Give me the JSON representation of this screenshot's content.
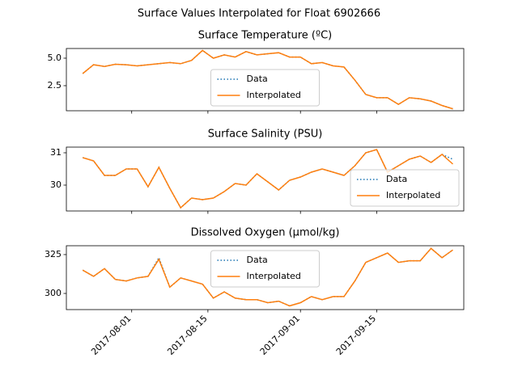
{
  "title": "Surface Values Interpolated for Float 6902666",
  "chart_data": [
    {
      "type": "line",
      "title": "Surface Temperature (ºC)",
      "x": [
        "2017-07-23",
        "2017-07-25",
        "2017-07-27",
        "2017-07-29",
        "2017-07-31",
        "2017-08-02",
        "2017-08-04",
        "2017-08-06",
        "2017-08-08",
        "2017-08-10",
        "2017-08-12",
        "2017-08-14",
        "2017-08-16",
        "2017-08-18",
        "2017-08-20",
        "2017-08-22",
        "2017-08-24",
        "2017-08-26",
        "2017-08-28",
        "2017-08-30",
        "2017-09-01",
        "2017-09-03",
        "2017-09-05",
        "2017-09-07",
        "2017-09-09",
        "2017-09-11",
        "2017-09-13",
        "2017-09-15",
        "2017-09-17",
        "2017-09-19",
        "2017-09-21",
        "2017-09-23",
        "2017-09-25",
        "2017-09-27",
        "2017-09-29"
      ],
      "series": [
        {
          "name": "Data",
          "color": "#1f77b4",
          "style": "dotted",
          "values": [
            3.6,
            4.4,
            4.25,
            4.45,
            4.4,
            4.3,
            4.4,
            4.5,
            4.6,
            4.5,
            4.8,
            5.7,
            5.0,
            5.3,
            5.1,
            5.6,
            5.3,
            5.4,
            5.5,
            5.1,
            5.1,
            4.5,
            4.6,
            4.3,
            4.2,
            3.0,
            1.7,
            1.4,
            1.4,
            0.8,
            1.4,
            1.3,
            1.1,
            0.7,
            0.4
          ]
        },
        {
          "name": "Interpolated",
          "color": "#ff7f0e",
          "style": "solid",
          "values": [
            3.6,
            4.4,
            4.25,
            4.45,
            4.4,
            4.3,
            4.4,
            4.5,
            4.6,
            4.5,
            4.8,
            5.7,
            5.0,
            5.3,
            5.1,
            5.6,
            5.3,
            5.4,
            5.5,
            5.1,
            5.1,
            4.5,
            4.6,
            4.3,
            4.2,
            3.0,
            1.7,
            1.4,
            1.4,
            0.8,
            1.4,
            1.3,
            1.1,
            0.7,
            0.4
          ]
        }
      ],
      "xlim": [
        "2017-07-20",
        "2017-10-01"
      ],
      "xticks": [
        "2017-08-01",
        "2017-08-15",
        "2017-09-01",
        "2017-09-15"
      ],
      "ylim": [
        0.22,
        5.88
      ],
      "yticks": [
        {
          "value": 2.5,
          "label": "2.5"
        },
        {
          "value": 5,
          "label": "5.0"
        }
      ],
      "legend": "lower center"
    },
    {
      "type": "line",
      "title": "Surface Salinity (PSU)",
      "x": [
        "2017-07-23",
        "2017-07-25",
        "2017-07-27",
        "2017-07-29",
        "2017-07-31",
        "2017-08-02",
        "2017-08-04",
        "2017-08-06",
        "2017-08-08",
        "2017-08-10",
        "2017-08-12",
        "2017-08-14",
        "2017-08-16",
        "2017-08-18",
        "2017-08-20",
        "2017-08-22",
        "2017-08-24",
        "2017-08-26",
        "2017-08-28",
        "2017-08-30",
        "2017-09-01",
        "2017-09-03",
        "2017-09-05",
        "2017-09-07",
        "2017-09-09",
        "2017-09-11",
        "2017-09-13",
        "2017-09-15",
        "2017-09-17",
        "2017-09-19",
        "2017-09-21",
        "2017-09-23",
        "2017-09-25",
        "2017-09-27",
        "2017-09-29"
      ],
      "series": [
        {
          "name": "Data",
          "color": "#1f77b4",
          "style": "dotted",
          "values": [
            30.85,
            30.75,
            30.3,
            30.3,
            30.5,
            30.5,
            29.95,
            30.55,
            29.9,
            29.3,
            29.6,
            29.55,
            29.6,
            29.8,
            30.05,
            30.0,
            30.35,
            30.1,
            29.85,
            30.15,
            30.25,
            30.4,
            30.5,
            30.4,
            30.3,
            30.6,
            31.0,
            31.1,
            30.4,
            30.6,
            30.8,
            30.9,
            30.7,
            30.95,
            30.8
          ]
        },
        {
          "name": "Interpolated",
          "color": "#ff7f0e",
          "style": "solid",
          "values": [
            30.85,
            30.75,
            30.3,
            30.3,
            30.5,
            30.5,
            29.95,
            30.55,
            29.9,
            29.3,
            29.6,
            29.55,
            29.6,
            29.8,
            30.05,
            30.0,
            30.35,
            30.1,
            29.85,
            30.15,
            30.25,
            30.4,
            30.5,
            30.4,
            30.3,
            30.6,
            31.0,
            31.1,
            30.4,
            30.6,
            30.8,
            30.9,
            30.7,
            30.95,
            30.65
          ]
        }
      ],
      "xlim": [
        "2017-07-20",
        "2017-10-01"
      ],
      "xticks": [
        "2017-08-01",
        "2017-08-15",
        "2017-09-01",
        "2017-09-15"
      ],
      "ylim": [
        29.2,
        31.175
      ],
      "yticks": [
        30,
        31
      ],
      "legend": "lower right"
    },
    {
      "type": "line",
      "title": "Dissolved Oxygen (µmol/kg)",
      "x": [
        "2017-07-23",
        "2017-07-25",
        "2017-07-27",
        "2017-07-29",
        "2017-07-31",
        "2017-08-02",
        "2017-08-04",
        "2017-08-06",
        "2017-08-08",
        "2017-08-10",
        "2017-08-12",
        "2017-08-14",
        "2017-08-16",
        "2017-08-18",
        "2017-08-20",
        "2017-08-22",
        "2017-08-24",
        "2017-08-26",
        "2017-08-28",
        "2017-08-30",
        "2017-09-01",
        "2017-09-03",
        "2017-09-05",
        "2017-09-07",
        "2017-09-09",
        "2017-09-11",
        "2017-09-13",
        "2017-09-15",
        "2017-09-17",
        "2017-09-19",
        "2017-09-21",
        "2017-09-23",
        "2017-09-25",
        "2017-09-27",
        "2017-09-29"
      ],
      "series": [
        {
          "name": "Data",
          "color": "#1f77b4",
          "style": "dotted",
          "values": [
            315,
            311,
            316,
            309,
            308,
            310,
            311,
            323,
            304,
            310,
            308,
            306,
            297,
            301,
            297,
            296,
            296,
            294,
            295,
            292,
            294,
            298,
            296,
            298,
            298,
            308,
            320,
            323,
            326,
            320,
            321,
            321,
            329,
            323,
            328
          ]
        },
        {
          "name": "Interpolated",
          "color": "#ff7f0e",
          "style": "solid",
          "values": [
            315,
            311,
            316,
            309,
            308,
            310,
            311,
            322,
            304,
            310,
            308,
            306,
            297,
            301,
            297,
            296,
            296,
            294,
            295,
            292,
            294,
            298,
            296,
            298,
            298,
            308,
            320,
            323,
            326,
            320,
            321,
            321,
            329,
            323,
            328
          ]
        }
      ],
      "xlim": [
        "2017-07-20",
        "2017-10-01"
      ],
      "xticks": [
        "2017-08-01",
        "2017-08-15",
        "2017-09-01",
        "2017-09-15"
      ],
      "ylim": [
        289.6,
        330.7
      ],
      "yticks": [
        300,
        325
      ],
      "legend": "upper center"
    }
  ]
}
